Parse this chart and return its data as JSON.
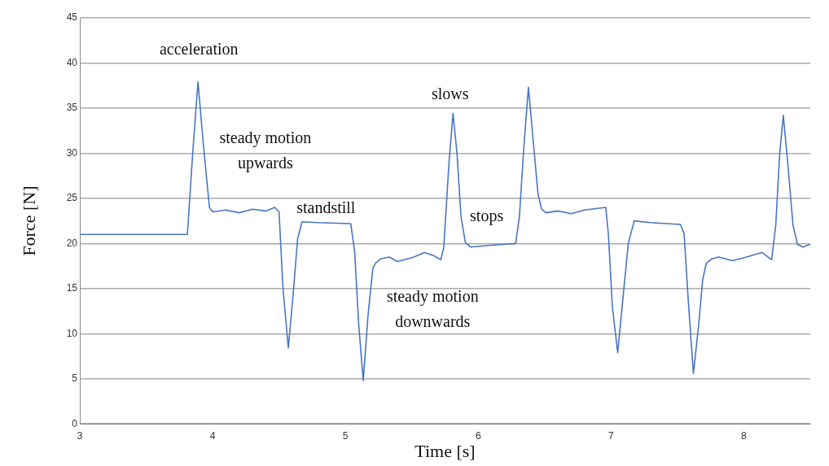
{
  "chart_data": {
    "type": "line",
    "xlabel": "Time [s]",
    "ylabel": "Force [N]",
    "xlim": [
      3,
      8.5
    ],
    "xticks": [
      3,
      4,
      5,
      6,
      7,
      8
    ],
    "ylim": [
      0,
      45
    ],
    "yticks": [
      0,
      5,
      10,
      15,
      20,
      25,
      30,
      35,
      40,
      45
    ],
    "grid": "y",
    "marker": "none",
    "line_style": "solid",
    "series": [
      {
        "color": "#4a74c2",
        "x": [
          3,
          3.81,
          3.85,
          3.89,
          3.93,
          3.976,
          4.0,
          4.1,
          4.2,
          4.3,
          4.4,
          4.468,
          4.5,
          4.53,
          4.57,
          4.61,
          4.64,
          4.673,
          4.8,
          5.04,
          5.07,
          5.1,
          5.134,
          5.17,
          5.206,
          5.226,
          5.268,
          5.329,
          5.39,
          5.5,
          5.595,
          5.67,
          5.718,
          5.74,
          5.78,
          5.81,
          5.84,
          5.87,
          5.903,
          5.944,
          6.1,
          6.282,
          6.31,
          6.345,
          6.378,
          6.41,
          6.45,
          6.477,
          6.51,
          6.6,
          6.7,
          6.8,
          6.96,
          6.98,
          7.01,
          7.05,
          7.09,
          7.13,
          7.174,
          7.3,
          7.522,
          7.55,
          7.58,
          7.62,
          7.66,
          7.69,
          7.717,
          7.76,
          7.81,
          7.912,
          8.0,
          8.137,
          8.209,
          8.24,
          8.27,
          8.297,
          8.33,
          8.37,
          8.404,
          8.445,
          8.5
        ],
        "values": [
          21,
          21,
          30,
          37.9,
          31,
          24,
          23.5,
          23.7,
          23.4,
          23.8,
          23.6,
          24,
          23.5,
          15,
          8.4,
          15,
          20.5,
          22.4,
          22.3,
          22.2,
          19,
          11,
          4.8,
          12,
          17.2,
          17.8,
          18.3,
          18.5,
          18,
          18.4,
          19,
          18.6,
          18.2,
          19.5,
          29,
          34.4,
          30,
          23,
          20.1,
          19.6,
          19.8,
          20,
          23,
          31,
          37.3,
          32,
          25.5,
          23.8,
          23.4,
          23.6,
          23.3,
          23.7,
          24,
          21,
          13,
          7.9,
          14,
          20,
          22.5,
          22.3,
          22.1,
          21.1,
          14,
          5.6,
          11,
          16,
          17.8,
          18.3,
          18.5,
          18.1,
          18.4,
          19,
          18.2,
          22,
          30,
          34.2,
          29,
          22,
          19.9,
          19.6,
          19.9
        ]
      }
    ],
    "annotations": [
      "acceleration",
      "steady motion upwards",
      "standstill",
      "slows",
      "stops",
      "steady motion downwards"
    ]
  }
}
